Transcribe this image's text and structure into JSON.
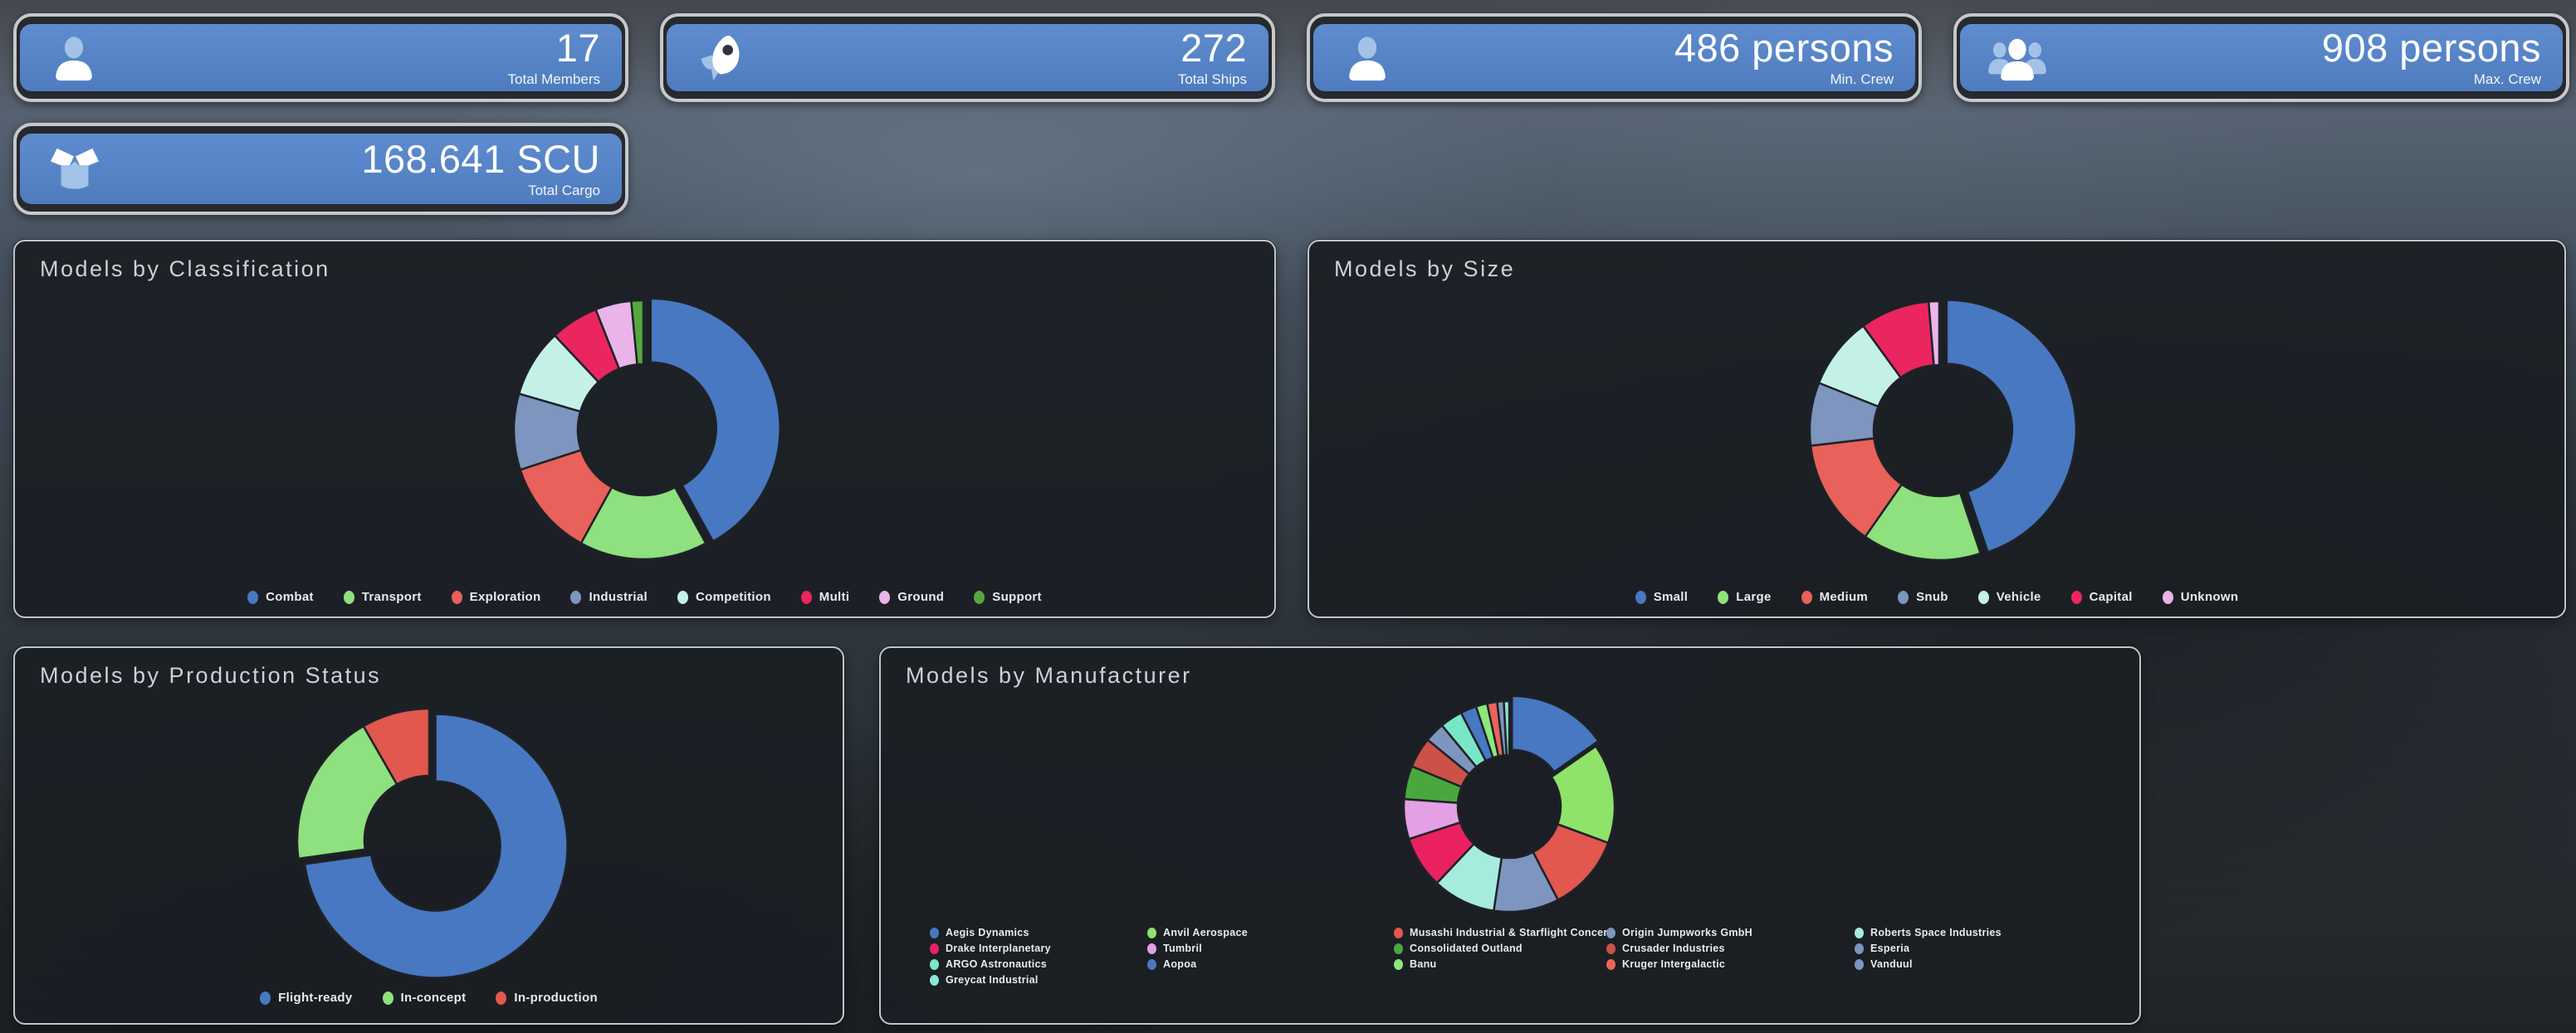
{
  "stat_cards": [
    {
      "icon": "member-icon",
      "value": "17",
      "label": "Total Members"
    },
    {
      "icon": "rocket-icon",
      "value": "272",
      "label": "Total Ships"
    },
    {
      "icon": "person-icon",
      "value": "486 persons",
      "label": "Min. Crew"
    },
    {
      "icon": "people-group-icon",
      "value": "908 persons",
      "label": "Max. Crew"
    },
    {
      "icon": "cargo-box-icon",
      "value": "168.641 SCU",
      "label": "Total Cargo"
    }
  ],
  "colors": {
    "card_blue": "#5587c8",
    "card_icon_light": "#a3c2e8",
    "panel_background": "#1e2227",
    "panel_border": "#c2c6ca",
    "panel_title": "#ccd1d7",
    "legend_text": "#e9ebee"
  },
  "chart_data": [
    {
      "type": "pie",
      "title": "Models by Classification",
      "legend_position": "bottom",
      "labels": [
        "Combat",
        "Transport",
        "Exploration",
        "Industrial",
        "Competition",
        "Multi",
        "Ground",
        "Support"
      ],
      "values": [
        42,
        16,
        12,
        9.5,
        8.5,
        6,
        4.5,
        1.5
      ],
      "colors": [
        "#4878c1",
        "#8fe07e",
        "#e8615a",
        "#7d95bf",
        "#c4f1e7",
        "#eb2560",
        "#eab4e8",
        "#55a83e"
      ]
    },
    {
      "type": "pie",
      "title": "Models by Size",
      "legend_position": "bottom",
      "labels": [
        "Small",
        "Large",
        "Medium",
        "Snub",
        "Vehicle",
        "Capital",
        "Unknown"
      ],
      "values": [
        44.4,
        14.7,
        13.3,
        7.8,
        8.9,
        8.6,
        1.3
      ],
      "colors": [
        "#4878c1",
        "#8fe07e",
        "#e8615a",
        "#7d95bf",
        "#c4f1e7",
        "#eb2560",
        "#eab4e8"
      ]
    },
    {
      "type": "pie",
      "title": "Models by Production Status",
      "legend_position": "bottom",
      "labels": [
        "Flight-ready",
        "In-concept",
        "In-production"
      ],
      "values": [
        72.8,
        18.9,
        8.3
      ],
      "colors": [
        "#4878c1",
        "#8fe07e",
        "#e2574e"
      ]
    },
    {
      "type": "pie",
      "title": "Models by Manufacturer",
      "legend_position": "bottom",
      "labels": [
        "Aegis Dynamics",
        "Anvil Aerospace",
        "Musashi Industrial & Starflight Concern",
        "Origin Jumpworks GmbH",
        "Roberts Space Industries",
        "Drake Interplanetary",
        "Tumbril",
        "Consolidated Outland",
        "Crusader Industries",
        "Esperia",
        "ARGO Astronautics",
        "Aopoa",
        "Banu",
        "Kruger Intergalactic",
        "Vanduul",
        "Greycat Industrial"
      ],
      "values": [
        15,
        15,
        11.5,
        9.8,
        9.5,
        7.8,
        6,
        5,
        4.6,
        3,
        3.4,
        2.4,
        1.7,
        1.5,
        1.0,
        0.8
      ],
      "colors": [
        "#4878c1",
        "#8fe26a",
        "#e2574e",
        "#7d95bf",
        "#a5ecdf",
        "#ea2160",
        "#e4a0e4",
        "#48a83e",
        "#cc5148",
        "#7d95bf",
        "#79e6c8",
        "#4878c1",
        "#8ce87c",
        "#e8645c",
        "#7d95bf",
        "#8ae6da"
      ]
    }
  ]
}
